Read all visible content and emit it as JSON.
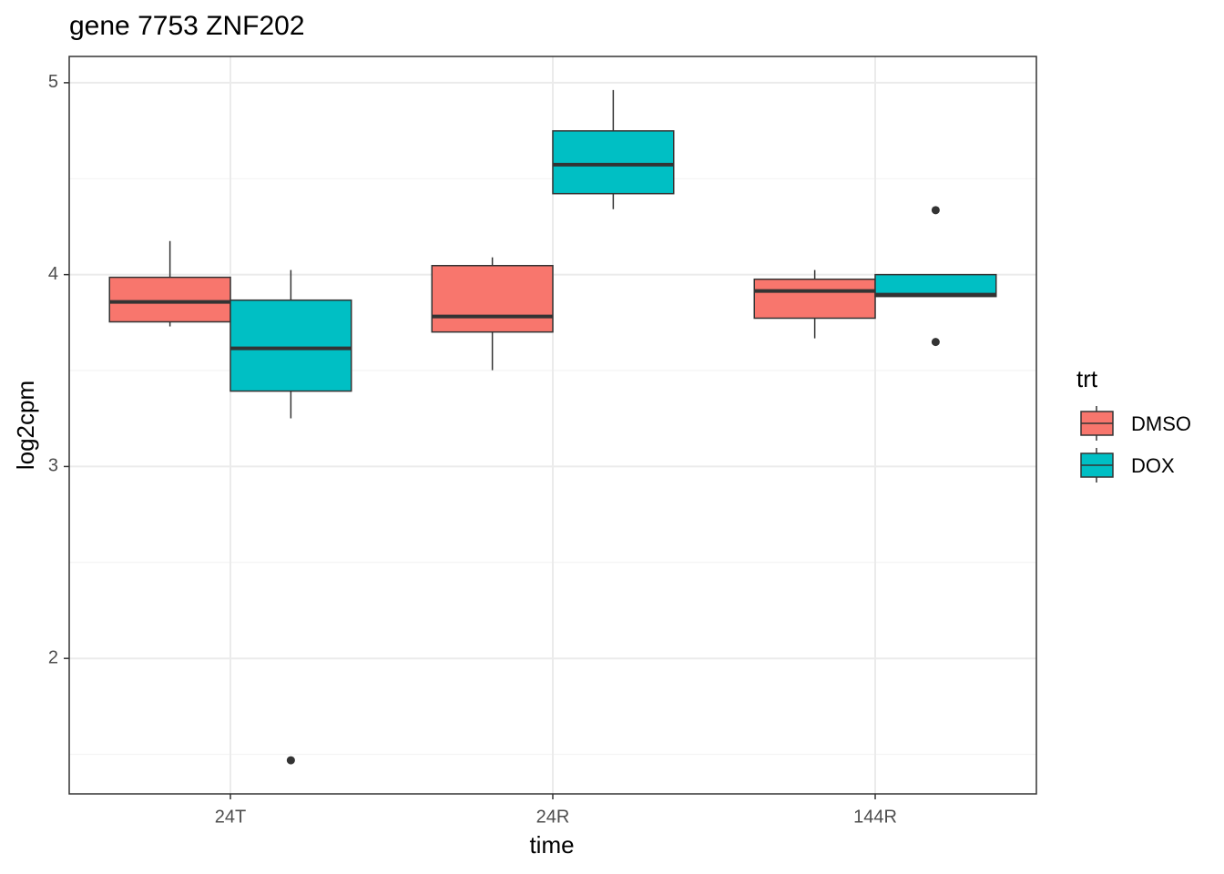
{
  "chart_data": {
    "type": "boxplot",
    "title": "gene 7753 ZNF202",
    "x_label": "time",
    "y_label": "log2cpm",
    "categories": [
      "24T",
      "24R",
      "144R"
    ],
    "ylim": [
      1.294,
      5.137
    ],
    "yticks": [
      2,
      3,
      4,
      5
    ],
    "yminor_ticks": [
      1.5,
      2.5,
      3.5,
      4.5
    ],
    "grid": true,
    "legend_title": "trt",
    "legend_position": "right",
    "series": [
      {
        "name": "DMSO",
        "color": "#f8766d",
        "boxes": [
          {
            "whislo": 3.73,
            "q1": 3.754,
            "med": 3.858,
            "q3": 3.986,
            "whishi": 4.175,
            "outliers": []
          },
          {
            "whislo": 3.502,
            "q1": 3.701,
            "med": 3.782,
            "q3": 4.047,
            "whishi": 4.09,
            "outliers": []
          },
          {
            "whislo": 3.668,
            "q1": 3.773,
            "med": 3.915,
            "q3": 3.976,
            "whishi": 4.024,
            "outliers": []
          }
        ]
      },
      {
        "name": "DOX",
        "color": "#00bfc4",
        "boxes": [
          {
            "whislo": 3.251,
            "q1": 3.393,
            "med": 3.616,
            "q3": 3.867,
            "whishi": 4.024,
            "outliers": [
              1.469
            ]
          },
          {
            "whislo": 4.341,
            "q1": 4.422,
            "med": 4.573,
            "q3": 4.749,
            "whishi": 4.962,
            "outliers": []
          },
          {
            "whislo": 3.886,
            "q1": 3.886,
            "med": 3.896,
            "q3": 4.0,
            "whishi": 4.0,
            "outliers": [
              4.336,
              3.649
            ]
          }
        ]
      }
    ]
  }
}
